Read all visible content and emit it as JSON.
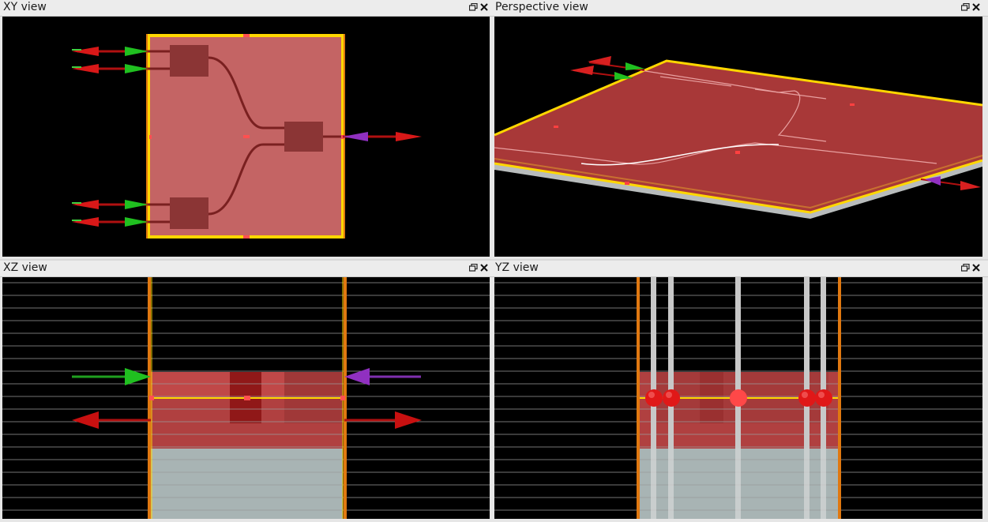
{
  "panes": {
    "xy": {
      "title": "XY view"
    },
    "perspective": {
      "title": "Perspective view"
    },
    "xz": {
      "title": "XZ view"
    },
    "yz": {
      "title": "YZ view"
    }
  },
  "header_icons": [
    "restore-icon",
    "close-icon"
  ],
  "colors": {
    "background": "#000000",
    "substrate_fill": "#c86464",
    "component_dark": "#8b3030",
    "boundary": "#ffd700",
    "pml_orange": "#e07810",
    "port_red": "#cc1010",
    "port_green": "#20c020",
    "port_purple": "#9030c0",
    "cladding_gray": "#a8b4b4",
    "grid_line": "#9a9a9a"
  }
}
